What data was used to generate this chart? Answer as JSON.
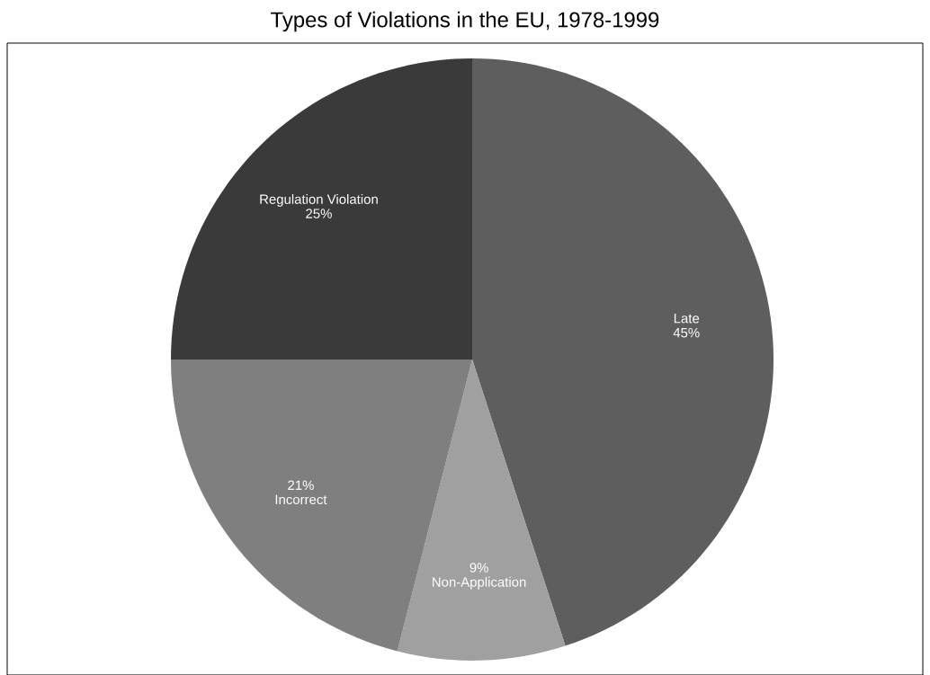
{
  "chart_data": {
    "type": "pie",
    "title": "Types of Violations in the EU, 1978-1999",
    "categories": [
      "Late",
      "Non-Application",
      "Incorrect",
      "Regulation Violation"
    ],
    "values": [
      45,
      9,
      21,
      25
    ],
    "value_labels": [
      "45%",
      "9%",
      "21%",
      "25%"
    ],
    "colors": [
      "#5e5e5e",
      "#a0a0a0",
      "#7f7f7f",
      "#3a3a3a"
    ]
  }
}
